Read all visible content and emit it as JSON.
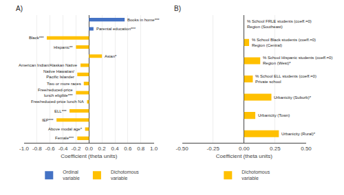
{
  "chart_data": [
    {
      "type": "bar",
      "orientation": "horizontal",
      "title": "A)",
      "categories": [
        "Books in home***",
        "Parental education***",
        "Black***",
        "Hispanic**",
        "Asian*",
        "American Indian/Alaskan Native",
        "Native Hawaiian/\nPacific Islander",
        "Two or more races",
        "Free/reduced-price\nlunch eligible***",
        "Free/reduced-price lunch NA",
        "ELL***",
        "IEP***",
        "Above modal age*",
        "Female***"
      ],
      "series": [
        {
          "name": "Ordinal\nvariable",
          "color": "#4472C4",
          "values": [
            0.55,
            0.07,
            null,
            null,
            null,
            null,
            null,
            null,
            null,
            null,
            null,
            null,
            null,
            null
          ]
        },
        {
          "name": "Dichotomous\nvariable",
          "color": "#FFC000",
          "values": [
            null,
            null,
            -0.65,
            -0.2,
            0.2,
            -0.13,
            -0.18,
            -0.08,
            -0.2,
            -0.03,
            -0.3,
            -0.5,
            -0.06,
            -0.18
          ]
        }
      ],
      "xlabel": "Coefficient (theta units)",
      "xlim": [
        -1.0,
        1.0
      ],
      "xticks": [
        {
          "value": -1.0,
          "label": "-1.0"
        },
        -0.8,
        -0.6,
        -0.4,
        -0.2,
        {
          "value": 0.0,
          "label": "0.0"
        },
        0.2,
        0.4,
        0.6,
        0.8,
        {
          "value": 1.0,
          "label": "1.0"
        }
      ],
      "grid": true,
      "legend": "bottom",
      "tick_labels": "x"
    },
    {
      "type": "bar",
      "orientation": "horizontal",
      "title": "B)",
      "categories": [
        "% School FRLE students (coeff.=0)\nRegion (Southeast)",
        "% School Black students (coeff.=0)\nRegion (Central)",
        "% School Hispanic students (coeff.=0)\nRegion (West)*",
        "% School ELL students (coeff.=0)\nPrivate school",
        "Urbanicity (Suburb)*",
        "Urbanicity (Town)",
        "Urbanicity (Rural)*"
      ],
      "series": [
        {
          "name": "Dichotomous\nvariable",
          "color": "#FFC000",
          "values": [
            0.0,
            0.04,
            0.13,
            0.07,
            0.22,
            0.09,
            0.28
          ]
        }
      ],
      "xlabel": "Coefficient (theta units)",
      "xlim": [
        -0.5,
        0.5
      ],
      "xticks": [
        {
          "value": -0.5,
          "label": "-0.50"
        },
        -0.25,
        {
          "value": 0.0,
          "label": "0.00"
        },
        0.25,
        {
          "value": 0.5,
          "label": "0.50"
        }
      ],
      "grid": true,
      "legend": "bottom",
      "tick_labels": "x"
    }
  ]
}
